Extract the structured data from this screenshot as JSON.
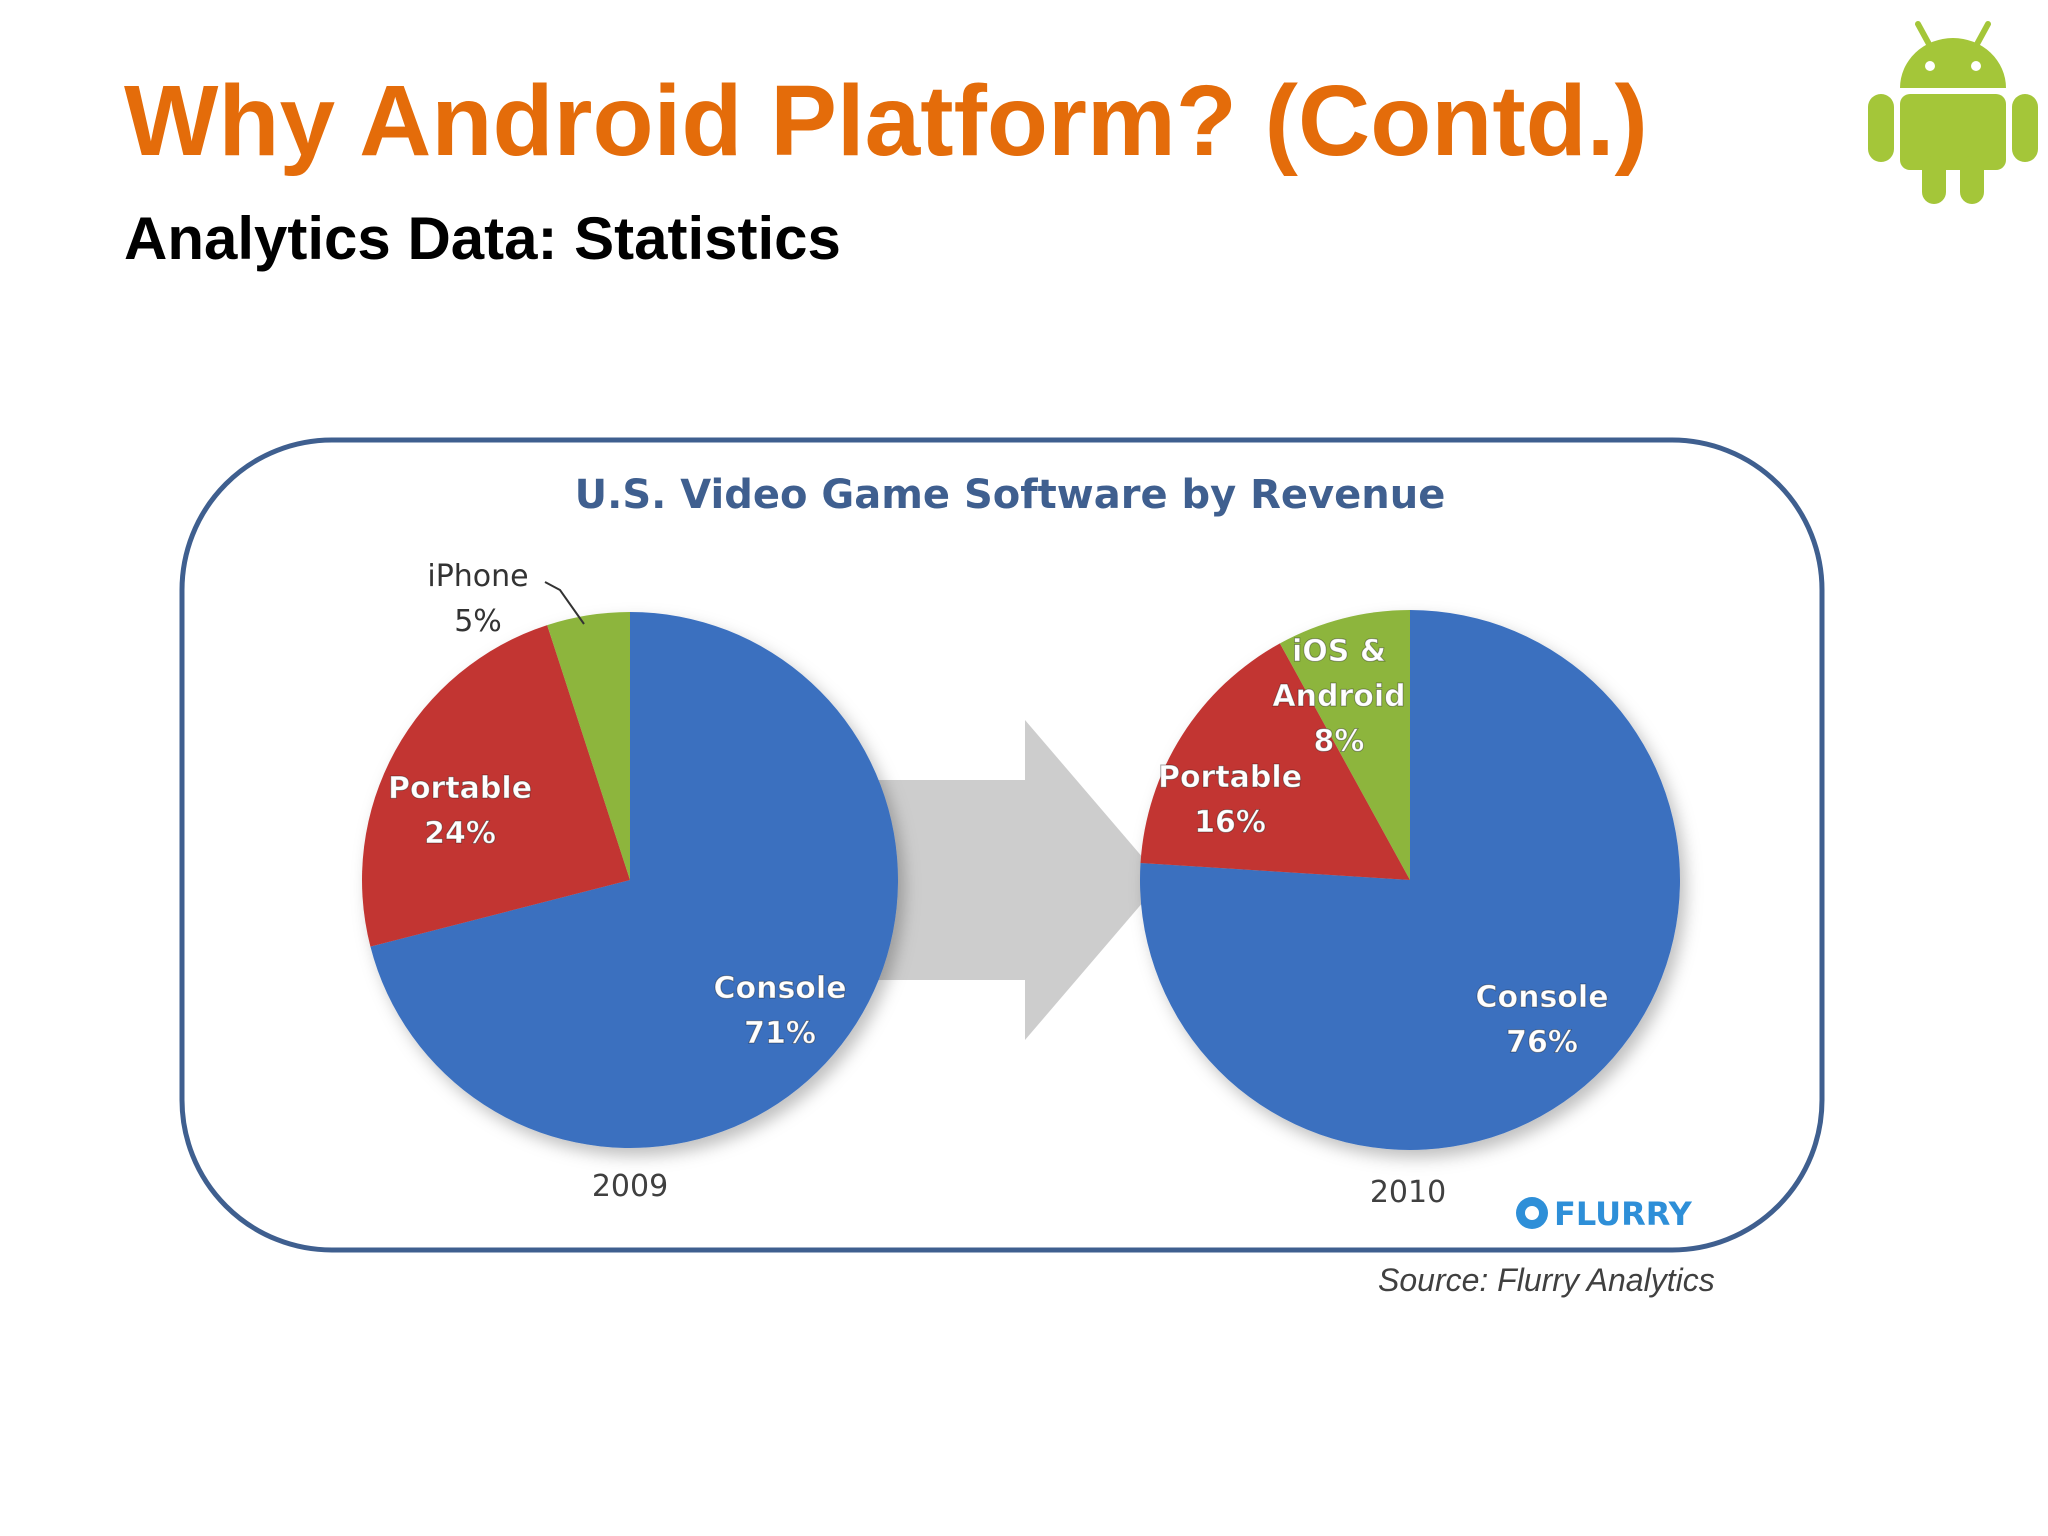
{
  "slide": {
    "title": "Why Android Platform? (Contd.)",
    "subtitle": "Analytics Data: Statistics",
    "logo_icon": "android-robot-icon",
    "logo_color": "#A4C639"
  },
  "chart_data": {
    "type": "pie",
    "title": "U.S. Video Game Software by Revenue",
    "legend": "none",
    "brand": "FLURRY",
    "source": "Source: Flurry Analytics",
    "colors": {
      "Console": "#3A6FBF",
      "Portable": "#C23533",
      "iPhone": "#8DB53E",
      "iOS & Android": "#8DB53E",
      "frame": "#3F5F8F",
      "title": "#3F5F8F",
      "arrow": "#C8C8C8"
    },
    "pies": [
      {
        "year": "2009",
        "slices": [
          {
            "category": "Console",
            "value": 71,
            "label_lines": [
              "Console",
              "71%"
            ]
          },
          {
            "category": "Portable",
            "value": 24,
            "label_lines": [
              "Portable",
              "24%"
            ]
          },
          {
            "category": "iPhone",
            "value": 5,
            "label_lines": [
              "iPhone",
              "5%"
            ]
          }
        ]
      },
      {
        "year": "2010",
        "slices": [
          {
            "category": "Console",
            "value": 76,
            "label_lines": [
              "Console",
              "76%"
            ]
          },
          {
            "category": "Portable",
            "value": 16,
            "label_lines": [
              "Portable",
              "16%"
            ]
          },
          {
            "category": "iOS & Android",
            "value": 8,
            "label_lines": [
              "iOS &",
              "Android",
              "8%"
            ]
          }
        ]
      }
    ]
  }
}
